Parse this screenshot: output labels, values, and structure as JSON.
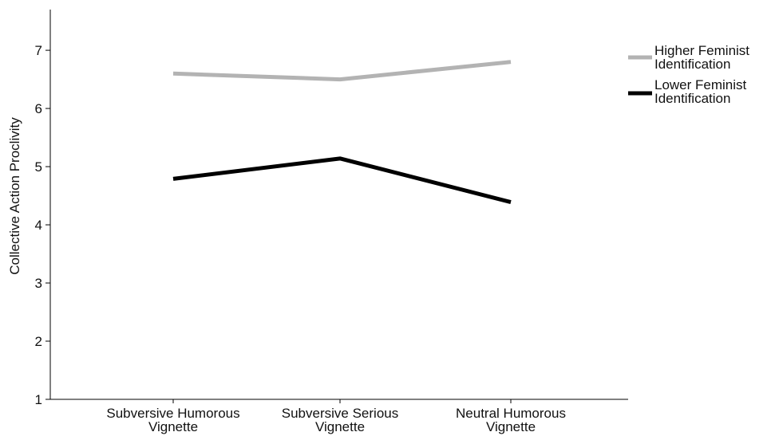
{
  "chart_data": {
    "type": "line",
    "title": "",
    "xlabel": "",
    "ylabel": "Collective Action Proclivity",
    "ylim": [
      1,
      7.7
    ],
    "yticks": [
      1,
      2,
      3,
      4,
      5,
      6,
      7
    ],
    "grid": false,
    "legend_position": "right",
    "categories": [
      [
        "Subversive Humorous",
        "Vignette"
      ],
      [
        "Subversive Serious",
        "Vignette"
      ],
      [
        "Neutral Humorous",
        "Vignette"
      ]
    ],
    "series": [
      {
        "name": [
          "Higher Feminist",
          "Identification"
        ],
        "color": "#b3b3b3",
        "values": [
          6.6,
          6.5,
          6.8
        ]
      },
      {
        "name": [
          "Lower Feminist",
          "Identification"
        ],
        "color": "#000000",
        "values": [
          4.79,
          5.14,
          4.39
        ]
      }
    ]
  }
}
